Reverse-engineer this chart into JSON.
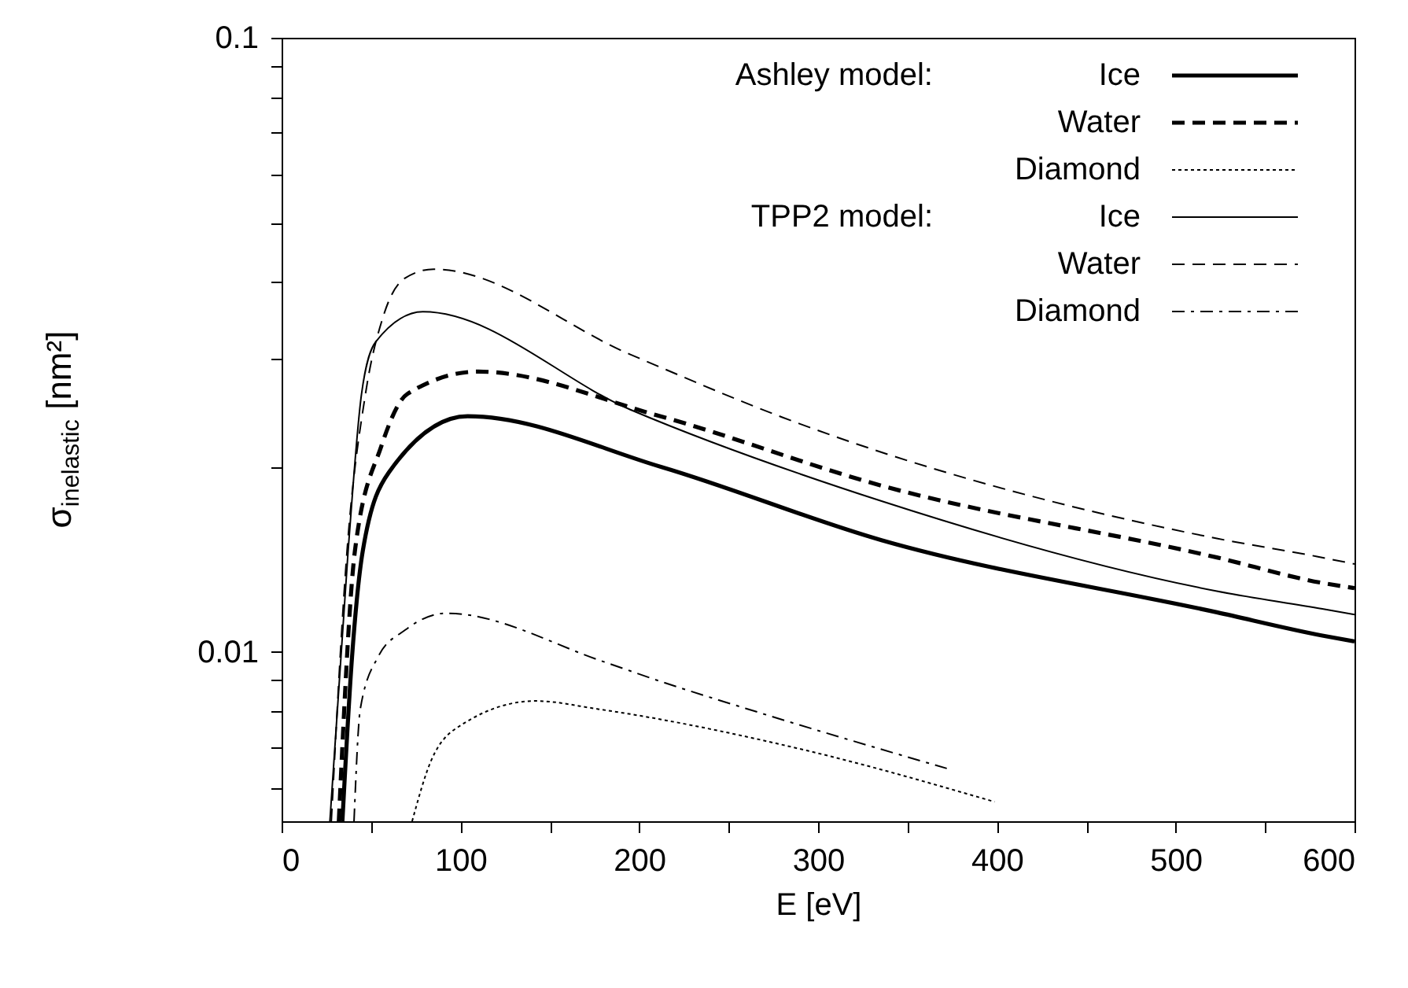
{
  "chart_data": {
    "type": "line",
    "xlabel": "E [eV]",
    "ylabel": "σ$_{inelastic}$ [nm²]",
    "log": "y",
    "legend": "top right",
    "annotations": [
      "Ashley model:",
      "TPP2 model:"
    ],
    "xlim": [
      0,
      600
    ],
    "xticks": [
      0,
      {
        "value": 50,
        "label": null
      },
      100,
      {
        "value": 150,
        "label": null
      },
      200,
      {
        "value": 250,
        "label": null
      },
      300,
      {
        "value": 350,
        "label": null
      },
      400,
      {
        "value": 450,
        "label": null
      },
      500,
      {
        "value": 550,
        "label": null
      },
      600
    ],
    "ylim": [
      0.0053,
      0.1
    ],
    "yticks": [
      {
        "value": 0.006,
        "label": null
      },
      {
        "value": 0.007,
        "label": null
      },
      {
        "value": 0.008,
        "label": null
      },
      {
        "value": 0.009,
        "label": null
      },
      0.01,
      {
        "value": 0.02,
        "label": null
      },
      {
        "value": 0.03,
        "label": null
      },
      {
        "value": 0.04,
        "label": null
      },
      {
        "value": 0.05,
        "label": null
      },
      {
        "value": 0.06,
        "label": null
      },
      {
        "value": 0.07,
        "label": null
      },
      {
        "value": 0.08,
        "label": null
      },
      {
        "value": 0.09,
        "label": null
      },
      0.1
    ],
    "series": [
      {
        "name": "Ice",
        "color": "#000000",
        "line_style": "solid",
        "x": [
          34,
          39.4,
          45.4,
          60,
          104,
          212.5,
          335.5,
          523,
          582,
          600
        ],
        "values": [
          0.0053,
          0.00982,
          0.0146,
          0.0196,
          0.0242,
          0.02,
          0.0152,
          0.0116,
          0.01063,
          0.0104
        ]
      },
      {
        "name": "Water",
        "color": "#000000",
        "line_style": "dashed",
        "x": [
          32,
          41,
          55.7,
          70.3,
          110,
          209.6,
          335.5,
          523,
          582,
          600
        ],
        "values": [
          0.0053,
          0.0146,
          0.0216,
          0.0263,
          0.0286,
          0.0243,
          0.01865,
          0.01425,
          0.01295,
          0.0127
        ]
      },
      {
        "name": "Diamond",
        "color": "#000000",
        "line_style": "dotted",
        "x": [
          73,
          83.5,
          101,
          142,
          177,
          294.5,
          398.7
        ],
        "values": [
          0.0053,
          0.00664,
          0.00762,
          0.00832,
          0.00807,
          0.0069,
          0.0057
        ]
      },
      {
        "name": "Ice",
        "color": "#000000",
        "line_style": "solid",
        "x": [
          27,
          37.2,
          44.7,
          52.7,
          79,
          195,
          335.5,
          523,
          582,
          600
        ],
        "values": [
          0.0053,
          0.0146,
          0.0263,
          0.032,
          0.0358,
          0.0248,
          0.0176,
          0.01256,
          0.01175,
          0.0115
        ]
      },
      {
        "name": "Water",
        "color": "#000000",
        "line_style": "dashed",
        "x": [
          27.8,
          36.6,
          46.9,
          57,
          69,
          85,
          195,
          280,
          523,
          579,
          600
        ],
        "values": [
          0.0053,
          0.0146,
          0.0263,
          0.0353,
          0.0406,
          0.042,
          0.0305,
          0.0241,
          0.0153,
          0.0143,
          0.0139
        ]
      },
      {
        "name": "Diamond",
        "color": "#000000",
        "line_style": "dashdot",
        "x": [
          40.5,
          44,
          54,
          69,
          92,
          180,
          209.6,
          268,
          372
        ],
        "values": [
          0.0053,
          0.00807,
          0.00982,
          0.01085,
          0.01156,
          0.00964,
          0.009,
          0.00795,
          0.00646
        ]
      }
    ]
  }
}
